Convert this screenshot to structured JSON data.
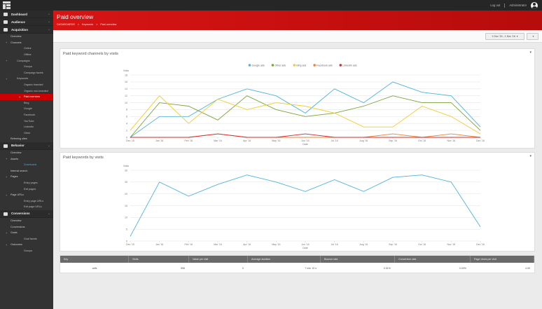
{
  "topbar": {
    "user_link": "Log out",
    "user_name": "Administrator"
  },
  "sidebar": {
    "sections": [
      {
        "key": "dashboard",
        "label": "Dashboard"
      },
      {
        "key": "audience",
        "label": "Audience"
      },
      {
        "key": "acquisition",
        "label": "Acquisition"
      }
    ],
    "acquisition_items": [
      {
        "label": "Overview",
        "level": 1
      },
      {
        "label": "Channels",
        "level": 1,
        "plus": true
      },
      {
        "label": "Online",
        "level": 3
      },
      {
        "label": "Offline",
        "level": 3
      },
      {
        "label": "Campaigns",
        "level": 2,
        "plus": true
      },
      {
        "label": "Groups",
        "level": 3
      },
      {
        "label": "Campaign facets",
        "level": 3
      },
      {
        "label": "Keywords",
        "level": 2,
        "plus": true
      },
      {
        "label": "Organic branded",
        "level": 3
      },
      {
        "label": "Organic non-branded",
        "level": 3
      },
      {
        "label": "Paid overview",
        "level": 3,
        "active": true
      },
      {
        "label": "Bing",
        "level": 3
      },
      {
        "label": "Google",
        "level": 3
      },
      {
        "label": "Facebook",
        "level": 3
      },
      {
        "label": "YouTube",
        "level": 3
      },
      {
        "label": "LinkedIn",
        "level": 3
      },
      {
        "label": "Other",
        "level": 3
      },
      {
        "label": "Referring sites",
        "level": 1
      }
    ],
    "behavior_section": {
      "label": "Behavior"
    },
    "behavior_items": [
      {
        "label": "Overview",
        "level": 1
      },
      {
        "label": "Assets",
        "level": 1,
        "plus": true
      },
      {
        "label": "Downloads",
        "level": 3,
        "highlight": true
      },
      {
        "label": "Internal search",
        "level": 1
      },
      {
        "label": "Pages",
        "level": 1,
        "plus": true
      },
      {
        "label": "Entry pages",
        "level": 3
      },
      {
        "label": "Exit pages",
        "level": 3
      },
      {
        "label": "Page URLs",
        "level": 1,
        "plus": true
      },
      {
        "label": "Entry page URLs",
        "level": 3
      },
      {
        "label": "Exit page URLs",
        "level": 3
      }
    ],
    "conversions_section": {
      "label": "Conversions"
    },
    "conversions_items": [
      {
        "label": "Overview",
        "level": 1
      },
      {
        "label": "Conversions",
        "level": 1
      },
      {
        "label": "Goals",
        "level": 1,
        "plus": true
      },
      {
        "label": "Goal facets",
        "level": 3
      },
      {
        "label": "Outcomes",
        "level": 1,
        "plus": true
      },
      {
        "label": "Groups",
        "level": 3
      }
    ]
  },
  "header": {
    "title": "Paid overview",
    "breadcrumbs": [
      "DASHBOARDS",
      ">",
      "Keywords",
      ">",
      "Paid overview"
    ]
  },
  "filters": {
    "date_range": "1 Dec '15 - 1 Dec '16",
    "menu_label": ""
  },
  "panel1": {
    "title": "Paid keyword channels by visits",
    "menu": "▾"
  },
  "panel2": {
    "title": "Paid keywords by visits",
    "menu": "▾"
  },
  "colors": {
    "google": "#4fb3d9",
    "other": "#7aa33a",
    "bing": "#f2cc2f",
    "facebook": "#e8833a",
    "linkedin": "#d42a2a"
  },
  "chart_data": [
    {
      "type": "line",
      "title": "Paid keyword channels by visits",
      "xlabel": "Date",
      "ylabel": "Visits",
      "x": [
        "Dec '15",
        "Jan '16",
        "Feb '16",
        "Mar '16",
        "Apr '16",
        "May '16",
        "Jun '16",
        "Jul '16",
        "Aug '16",
        "Sep '16",
        "Oct '16",
        "Nov '16",
        "Dec '16"
      ],
      "ylim": [
        0,
        18
      ],
      "yticks": [
        0,
        2,
        4,
        6,
        8,
        10,
        12,
        14,
        16,
        18
      ],
      "legend": "top-center",
      "grid": true,
      "series": [
        {
          "name": "Google ads",
          "color": "#4fb3d9",
          "values": [
            0,
            6,
            6,
            11,
            14,
            12,
            7,
            14,
            10,
            16,
            13,
            12,
            3
          ]
        },
        {
          "name": "Other ads",
          "color": "#7aa33a",
          "values": [
            0,
            10,
            9,
            5,
            12,
            8,
            6,
            7,
            9,
            12,
            10,
            10,
            2
          ]
        },
        {
          "name": "Bing ads",
          "color": "#f2cc2f",
          "values": [
            2,
            12,
            4,
            11,
            8,
            10,
            9,
            7,
            3,
            3,
            9,
            6,
            1
          ]
        },
        {
          "name": "Facebook ads",
          "color": "#e8833a",
          "values": [
            0,
            0,
            0,
            1,
            0,
            0,
            0,
            0,
            0,
            1,
            0,
            1,
            0
          ]
        },
        {
          "name": "LinkedIn ads",
          "color": "#d42a2a",
          "values": [
            0,
            0,
            0,
            1,
            0,
            0,
            1,
            0,
            0,
            0,
            0,
            0,
            0
          ]
        }
      ]
    },
    {
      "type": "line",
      "title": "Paid keywords by visits",
      "xlabel": "Date",
      "ylabel": "Visits",
      "x": [
        "Dec '15",
        "Jan '16",
        "Feb '16",
        "Mar '16",
        "Apr '16",
        "May '16",
        "Jun '16",
        "Jul '16",
        "Aug '16",
        "Sep '16",
        "Oct '16",
        "Nov '16",
        "Dec '16"
      ],
      "ylim": [
        0,
        30
      ],
      "yticks": [
        0,
        5,
        10,
        15,
        20,
        25,
        30
      ],
      "grid": true,
      "series": [
        {
          "name": "",
          "color": "#4fb3d9",
          "values": [
            2,
            25,
            19,
            24,
            28,
            25,
            21,
            26,
            21,
            27,
            28,
            25,
            6
          ]
        }
      ]
    }
  ],
  "table": {
    "headers": [
      "Key",
      "Visits",
      "Value per visit",
      "Average duration",
      "Bounce rate",
      "Conversion rate",
      "Page views per visit"
    ],
    "rows": [
      [
        "adfs",
        "596",
        "0",
        "7 min 10 s",
        "0.51%",
        "0.00%",
        "4.59"
      ]
    ]
  }
}
